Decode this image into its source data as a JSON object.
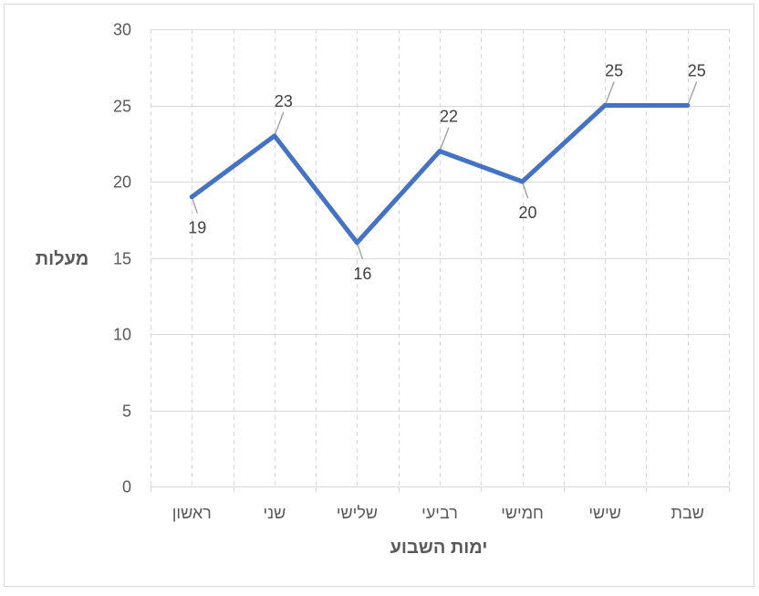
{
  "chart_data": {
    "type": "line",
    "title": "",
    "xlabel": "ימות השבוע",
    "ylabel": "מעלות",
    "categories": [
      "ראשון",
      "שני",
      "שלישי",
      "רביעי",
      "חמישי",
      "שישי",
      "שבת"
    ],
    "series": [
      {
        "values": [
          19,
          23,
          16,
          22,
          20,
          25,
          25
        ]
      }
    ],
    "ylim": [
      0,
      30
    ],
    "yticks": [
      0,
      5,
      10,
      15,
      20,
      25,
      30
    ],
    "data_labels": true,
    "grid": true,
    "minor_vertical_grid": true,
    "line_color": "#4472C4",
    "grid_color": "#D9D9D9",
    "label_leader_color": "#A6A6A6"
  }
}
